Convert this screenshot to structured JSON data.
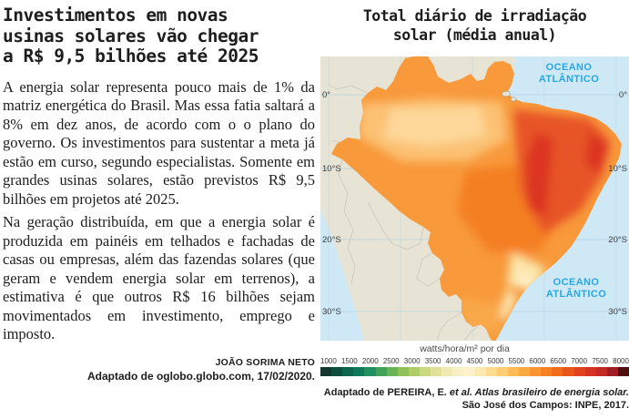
{
  "article": {
    "title_lines": [
      "Investimentos em novas",
      "usinas solares vão chegar",
      "a R$ 9,5 bilhões até 2025"
    ],
    "paragraphs": [
      "A energia solar representa pouco mais de 1% da matriz energética do Brasil. Mas essa fatia saltará a 8% em dez anos, de acordo com o o plano do governo. Os investimentos para sustentar a meta já estão em curso, segundo especialistas. Somente em grandes usinas solares, estão previstos R$ 9,5 bilhões em projetos até 2025.",
      "Na geração distribuída, em que a energia solar é produzida em painéis em telhados e fachadas de casas ou empresas, além das fazendas solares (que geram e vendem energia solar em terrenos), a estimativa é que outros R$ 16 bilhões sejam movimentados em investimento, emprego e imposto."
    ],
    "byline": "JOÃO SORIMA NETO",
    "credit": "Adaptado de oglobo.globo.com, 17/02/2020."
  },
  "figure": {
    "title_lines": [
      "Total diário de irradiação",
      "solar (média anual)"
    ],
    "ocean_label_lines": [
      "OCEANO",
      "ATLÂNTICO"
    ],
    "lat_labels": [
      "0°",
      "10°S",
      "20°S",
      "30°S"
    ],
    "unit_label": "watts/hora/m² por dia",
    "legend": {
      "values": [
        "1000",
        "1500",
        "2000",
        "2500",
        "3000",
        "3500",
        "4000",
        "4500",
        "5000",
        "5500",
        "6000",
        "6500",
        "7000",
        "7500",
        "8000"
      ],
      "colors": [
        "#14382c",
        "#0e4f3e",
        "#0d654e",
        "#10795a",
        "#22905f",
        "#41a35a",
        "#68b353",
        "#8fc055",
        "#b1cc66",
        "#cdd77f",
        "#e2e19a",
        "#efe9b2",
        "#f7f0c6",
        "#fdf2cd",
        "#fdeab0",
        "#fddc92",
        "#fdcd74",
        "#fdbb58",
        "#fba942",
        "#f99530",
        "#f68122",
        "#f06c19",
        "#e9561a",
        "#e1431e",
        "#d63323",
        "#c32a26",
        "#9e1f23",
        "#4e0e10"
      ]
    },
    "credit": {
      "roman": "Adaptado de PEREIRA, E. ",
      "italic": "et al. Atlas brasileiro de energia solar.",
      "line2": "São José dos Campos: INPE, 2017."
    }
  },
  "colors": {
    "ink": "#1d1d1d",
    "ocean": "#cfe8f5",
    "land": "#e7e4d5",
    "border": "#c3bfae",
    "grid": "#a9cee3",
    "cyan": "#29a8df",
    "latLabel": "#3d3d3d",
    "unit": "#4a4a4a",
    "tick": "#3a3a3a",
    "heatBase": "#f8993b",
    "amazonLight": "#fcc173",
    "amazonPale": "#fdda9e",
    "central": "#f47f24",
    "neRed": "#e75426",
    "neDark": "#d93120",
    "sePale": "#fde5ab",
    "cream": "#fdf2cc",
    "coastPale": "#fdeab5",
    "southLight": "#f9a84a"
  }
}
